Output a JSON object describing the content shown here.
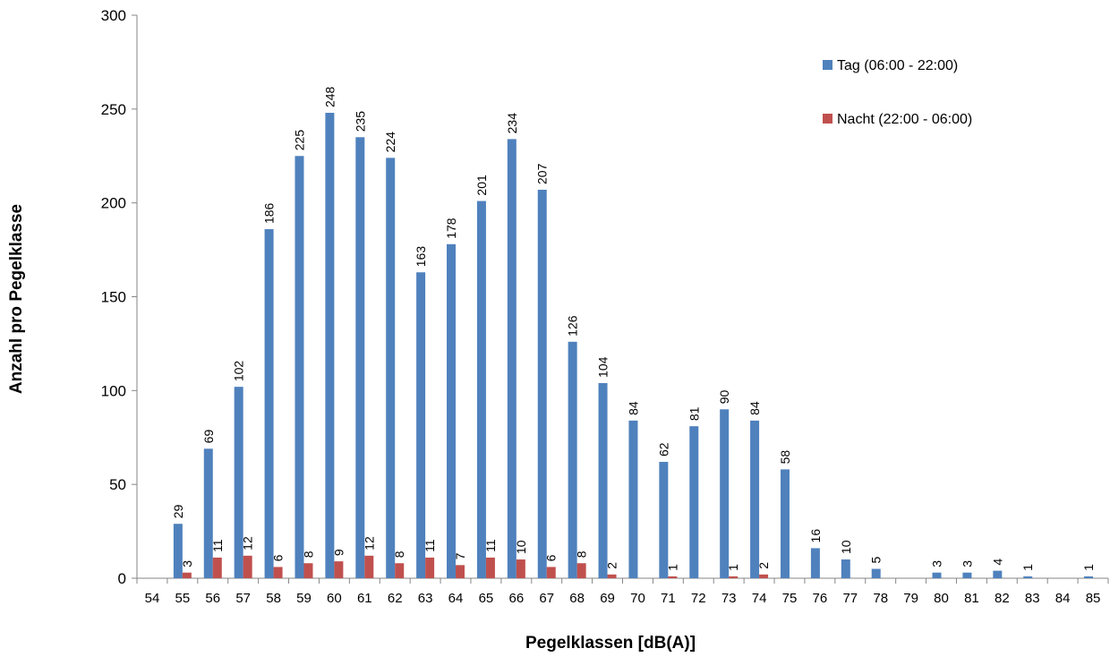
{
  "chart_data": {
    "type": "bar",
    "xlabel": "Pegelklassen [dB(A)]",
    "ylabel": "Anzahl pro Pegelklasse",
    "ylim": [
      0,
      300
    ],
    "yticks": [
      0,
      50,
      100,
      150,
      200,
      250,
      300
    ],
    "grid": false,
    "legend_position": "top-right",
    "categories": [
      "54",
      "55",
      "56",
      "57",
      "58",
      "59",
      "60",
      "61",
      "62",
      "63",
      "64",
      "65",
      "66",
      "67",
      "68",
      "69",
      "70",
      "71",
      "72",
      "73",
      "74",
      "75",
      "76",
      "77",
      "78",
      "79",
      "80",
      "81",
      "82",
      "83",
      "84",
      "85"
    ],
    "series": [
      {
        "name": "Tag (06:00 - 22:00)",
        "color": "#4F81BD",
        "values": [
          0,
          29,
          69,
          102,
          186,
          225,
          248,
          235,
          224,
          163,
          178,
          201,
          234,
          207,
          126,
          104,
          84,
          62,
          81,
          90,
          84,
          58,
          16,
          10,
          5,
          0,
          3,
          3,
          4,
          1,
          0,
          1
        ],
        "labels": [
          "",
          "29",
          "69",
          "102",
          "186",
          "225",
          "248",
          "235",
          "224",
          "163",
          "178",
          "201",
          "234",
          "207",
          "126",
          "104",
          "84",
          "62",
          "81",
          "90",
          "84",
          "58",
          "16",
          "10",
          "5",
          "",
          "3",
          "3",
          "4",
          "1",
          "",
          "1"
        ]
      },
      {
        "name": "Nacht (22:00 - 06:00)",
        "color": "#C0504D",
        "values": [
          0,
          3,
          11,
          12,
          6,
          8,
          9,
          12,
          8,
          11,
          7,
          11,
          10,
          6,
          8,
          2,
          0,
          1,
          0,
          1,
          2,
          0,
          0,
          0,
          0,
          0,
          0,
          0,
          0,
          0,
          0,
          0
        ],
        "labels": [
          "",
          "3",
          "11",
          "12",
          "6",
          "8",
          "9",
          "12",
          "8",
          "11",
          "7",
          "11",
          "10",
          "6",
          "8",
          "2",
          "",
          "1",
          "",
          "1",
          "2",
          "",
          "",
          "",
          "",
          "",
          "",
          "",
          "",
          "",
          "",
          ""
        ]
      }
    ]
  }
}
